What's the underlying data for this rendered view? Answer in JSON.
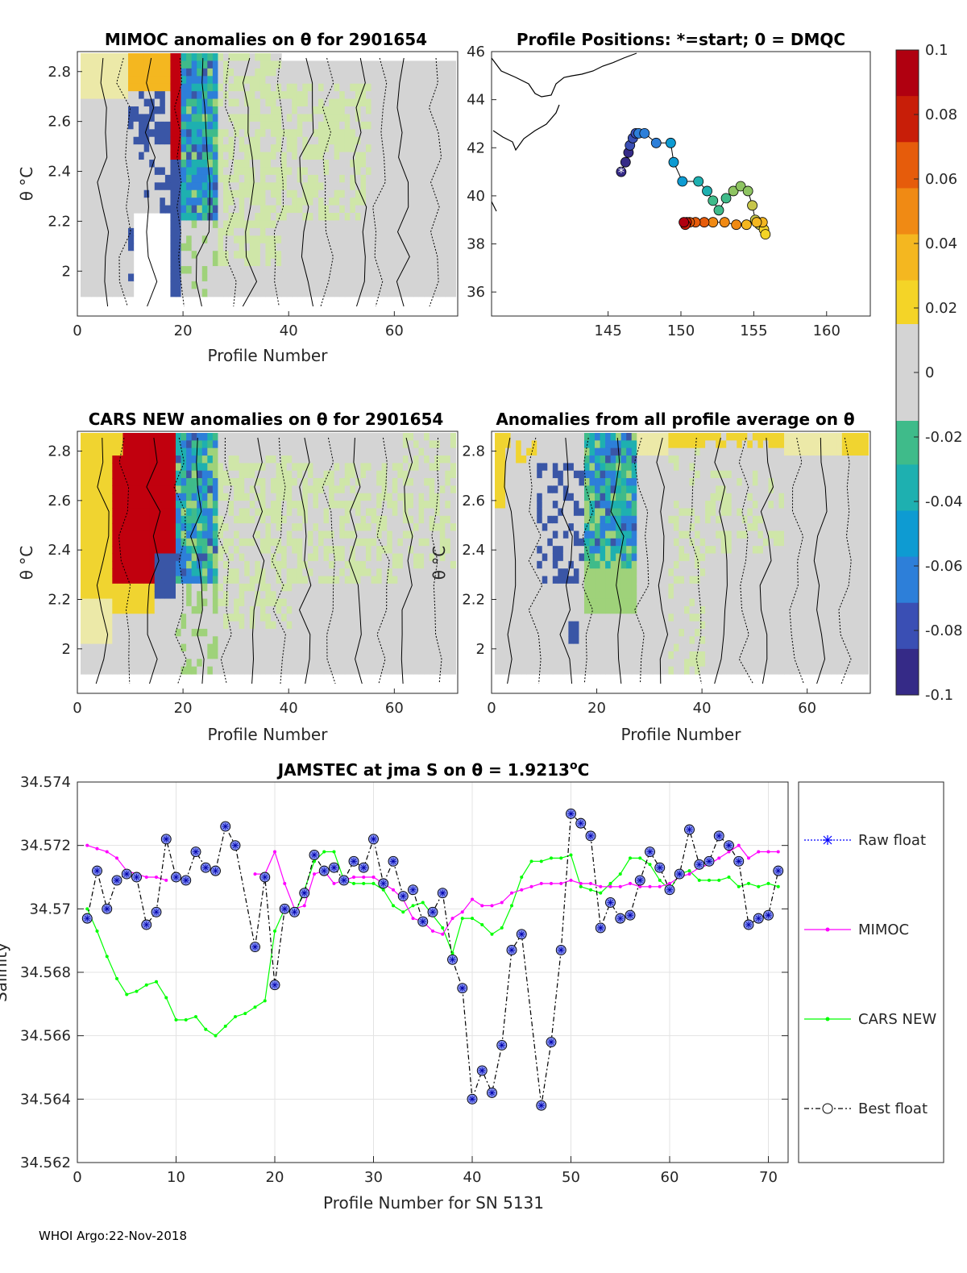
{
  "footer": "WHOI Argo:22-Nov-2018",
  "colormap": [
    "#352a87",
    "#3a4fb4",
    "#2d7fd9",
    "#0e9bd2",
    "#1eb0b0",
    "#3fbb8a",
    "#8ec462",
    "#c7c64b",
    "#f4d427",
    "#f4b720",
    "#f08a14",
    "#e65c0b",
    "#c81e08",
    "#b00010"
  ],
  "chart_data": [
    {
      "type": "heatmap",
      "title": "MIMOC anomalies on θ  for 2901654",
      "xlabel": "Profile Number",
      "ylabel": "θ °C",
      "xlim": [
        0,
        72
      ],
      "ylim": [
        1.82,
        2.88
      ],
      "xticks": [
        0,
        20,
        40,
        60
      ],
      "yticks": [
        2,
        2.2,
        2.4,
        2.6,
        2.8
      ],
      "xtick_labels": [
        "0",
        "20",
        "40",
        "60"
      ],
      "ytick_labels": [
        "2",
        "2.2",
        "2.4",
        "2.6",
        "2.8"
      ]
    },
    {
      "type": "scatter",
      "title": "Profile Positions: *=start; 0 = DMQC",
      "xlim": [
        137,
        163
      ],
      "ylim": [
        35,
        46
      ],
      "xticks": [
        145,
        150,
        155,
        160
      ],
      "yticks": [
        36,
        38,
        40,
        42,
        44,
        46
      ],
      "xtick_labels": [
        "145",
        "150",
        "155",
        "160"
      ],
      "ytick_labels": [
        "36",
        "38",
        "40",
        "42",
        "44",
        "46"
      ],
      "lon": [
        145.9,
        146.2,
        146.4,
        146.5,
        146.7,
        146.9,
        147.1,
        147.5,
        148.3,
        149.3,
        149.5,
        150.1,
        151.2,
        151.8,
        152.2,
        152.6,
        153.1,
        153.6,
        154.1,
        154.6,
        154.9,
        155.1,
        155.4,
        155.7,
        155.8,
        155.6,
        155.2,
        154.5,
        153.8,
        153.0,
        152.2,
        151.6,
        151.0,
        150.6,
        150.4,
        150.3,
        150.2
      ],
      "lat": [
        41.0,
        41.4,
        41.8,
        42.1,
        42.4,
        42.6,
        42.6,
        42.6,
        42.2,
        42.2,
        41.4,
        40.6,
        40.6,
        40.2,
        39.8,
        39.4,
        39.9,
        40.2,
        40.4,
        40.2,
        39.6,
        39.0,
        38.8,
        38.6,
        38.4,
        38.9,
        38.9,
        38.8,
        38.8,
        38.9,
        38.9,
        38.9,
        38.9,
        38.9,
        38.9,
        38.8,
        38.9
      ]
    },
    {
      "type": "colorbar",
      "ticks": [
        0.1,
        0.08,
        0.06,
        0.04,
        0.02,
        0,
        -0.02,
        -0.04,
        -0.06,
        -0.08,
        -0.1
      ],
      "tick_labels": [
        "0.1",
        "0.08",
        "0.06",
        "0.04",
        "0.02",
        "0",
        "-0.02",
        "-0.04",
        "-0.06",
        "-0.08",
        "-0.1"
      ],
      "range": [
        -0.1,
        0.1
      ]
    },
    {
      "type": "heatmap",
      "title": "CARS NEW anomalies on θ for 2901654",
      "xlabel": "Profile Number",
      "ylabel": "θ °C",
      "xlim": [
        0,
        72
      ],
      "ylim": [
        1.82,
        2.88
      ],
      "xticks": [
        0,
        20,
        40,
        60
      ],
      "yticks": [
        2,
        2.2,
        2.4,
        2.6,
        2.8
      ],
      "xtick_labels": [
        "0",
        "20",
        "40",
        "60"
      ],
      "ytick_labels": [
        "2",
        "2.2",
        "2.4",
        "2.6",
        "2.8"
      ]
    },
    {
      "type": "heatmap",
      "title": "Anomalies from all profile average on θ",
      "xlabel": "Profile Number",
      "ylabel": "θ °C",
      "xlim": [
        0,
        72
      ],
      "ylim": [
        1.82,
        2.88
      ],
      "xticks": [
        0,
        20,
        40,
        60
      ],
      "yticks": [
        2,
        2.2,
        2.4,
        2.6,
        2.8
      ],
      "xtick_labels": [
        "0",
        "20",
        "40",
        "60"
      ],
      "ytick_labels": [
        "2",
        "2.2",
        "2.4",
        "2.6",
        "2.8"
      ]
    },
    {
      "type": "line",
      "title_prefix": "JAMSTEC at jma S on θ = 1.9213",
      "title_sup": "o",
      "title_suffix": "C",
      "xlabel": "Profile Number for SN 5131",
      "ylabel": "Salinity",
      "xlim": [
        0,
        72
      ],
      "ylim": [
        34.562,
        34.574
      ],
      "xticks": [
        0,
        10,
        20,
        30,
        40,
        50,
        60,
        70
      ],
      "yticks": [
        34.562,
        34.564,
        34.566,
        34.568,
        34.57,
        34.572,
        34.574
      ],
      "xtick_labels": [
        "0",
        "10",
        "20",
        "30",
        "40",
        "50",
        "60",
        "70"
      ],
      "ytick_labels": [
        "34.562",
        "34.564",
        "34.566",
        "34.568",
        "34.57",
        "34.572",
        "34.574"
      ],
      "legend": [
        "Raw float",
        "MIMOC",
        "CARS NEW",
        "Best float"
      ],
      "series": [
        {
          "name": "Raw float",
          "color": "#0000ff",
          "x": [
            1,
            2,
            3,
            4,
            5,
            6,
            7,
            8,
            9,
            10,
            11,
            12,
            13,
            14,
            15,
            16,
            18,
            19,
            20,
            21,
            22,
            23,
            24,
            25,
            26,
            27,
            28,
            29,
            30,
            31,
            32,
            33,
            34,
            35,
            36,
            37,
            38,
            39,
            40,
            41,
            42,
            43,
            44,
            45,
            47,
            48,
            49,
            50,
            51,
            52,
            53,
            54,
            55,
            56,
            57,
            58,
            59,
            60,
            61,
            62,
            63,
            64,
            65,
            66,
            67,
            68,
            69,
            70,
            71
          ],
          "y": [
            34.5697,
            34.5712,
            34.57,
            34.5709,
            34.5711,
            34.571,
            34.5695,
            34.5699,
            34.5722,
            34.571,
            34.5709,
            34.5718,
            34.5713,
            34.5712,
            34.5726,
            34.572,
            34.5688,
            34.571,
            34.5676,
            34.57,
            34.5699,
            34.5705,
            34.5717,
            34.5712,
            34.5713,
            34.5709,
            34.5715,
            34.5713,
            34.5722,
            34.5708,
            34.5715,
            34.5704,
            34.5706,
            34.5696,
            34.5699,
            34.5705,
            34.5684,
            34.5675,
            34.564,
            34.5649,
            34.5642,
            34.5657,
            34.5687,
            34.5692,
            34.5638,
            34.5658,
            34.5687,
            34.573,
            34.5727,
            34.5723,
            34.5694,
            34.5702,
            34.5697,
            34.5698,
            34.5709,
            34.5718,
            34.5713,
            34.5706,
            34.5711,
            34.5725,
            34.5714,
            34.5715,
            34.5723,
            34.572,
            34.5715,
            34.5695,
            34.5697,
            34.5698,
            34.5712
          ]
        },
        {
          "name": "MIMOC",
          "color": "#ff00ff",
          "x": [
            1,
            2,
            3,
            4,
            5,
            6,
            7,
            8,
            9,
            18,
            19,
            20,
            21,
            22,
            23,
            24,
            25,
            26,
            27,
            28,
            29,
            30,
            31,
            32,
            33,
            34,
            35,
            36,
            37,
            38,
            39,
            40,
            41,
            42,
            43,
            44,
            45,
            46,
            47,
            48,
            49,
            50,
            51,
            52,
            53,
            54,
            55,
            56,
            57,
            58,
            59,
            60,
            61,
            62,
            63,
            64,
            65,
            66,
            67,
            68,
            69,
            70,
            71
          ],
          "y": [
            34.572,
            34.5719,
            34.5718,
            34.5716,
            34.5712,
            34.5711,
            34.571,
            34.571,
            34.5709,
            34.5711,
            34.5711,
            34.5718,
            34.5708,
            34.57,
            34.5701,
            34.5711,
            34.5712,
            34.5708,
            34.5709,
            34.571,
            34.571,
            34.571,
            34.5708,
            34.5706,
            34.5703,
            34.5697,
            34.5696,
            34.5693,
            34.5692,
            34.5697,
            34.5699,
            34.5703,
            34.5701,
            34.5701,
            34.5702,
            34.5705,
            34.5706,
            34.5707,
            34.5708,
            34.5708,
            34.5708,
            34.5709,
            34.5708,
            34.5708,
            34.5707,
            34.5707,
            34.5707,
            34.5708,
            34.5707,
            34.5707,
            34.5707,
            34.5708,
            34.571,
            34.5711,
            34.5713,
            34.5714,
            34.5716,
            34.5718,
            34.572,
            34.5716,
            34.5718,
            34.5718,
            34.5718
          ]
        },
        {
          "name": "CARS NEW",
          "color": "#00ff00",
          "x": [
            1,
            2,
            3,
            4,
            5,
            6,
            7,
            8,
            9,
            10,
            11,
            12,
            13,
            14,
            15,
            16,
            17,
            18,
            19,
            20,
            21,
            22,
            23,
            24,
            25,
            26,
            27,
            28,
            29,
            30,
            31,
            32,
            33,
            34,
            35,
            36,
            37,
            38,
            39,
            40,
            41,
            42,
            43,
            44,
            45,
            46,
            47,
            48,
            49,
            50,
            51,
            52,
            53,
            54,
            55,
            56,
            57,
            58,
            59,
            60,
            61,
            62,
            63,
            64,
            65,
            66,
            67,
            68,
            69,
            70,
            71
          ],
          "y": [
            34.57,
            34.5693,
            34.5685,
            34.5678,
            34.5673,
            34.5674,
            34.5676,
            34.5677,
            34.5672,
            34.5665,
            34.5665,
            34.5666,
            34.5662,
            34.566,
            34.5663,
            34.5666,
            34.5667,
            34.5669,
            34.5671,
            34.5693,
            34.57,
            34.5698,
            34.5706,
            34.5715,
            34.5718,
            34.5718,
            34.5709,
            34.5708,
            34.5708,
            34.5708,
            34.5706,
            34.5701,
            34.5699,
            34.5701,
            34.5702,
            34.5698,
            34.5694,
            34.5686,
            34.5697,
            34.5697,
            34.5695,
            34.5692,
            34.5694,
            34.5701,
            34.571,
            34.5715,
            34.5715,
            34.5716,
            34.5716,
            34.5717,
            34.5707,
            34.5706,
            34.5705,
            34.5708,
            34.5711,
            34.5716,
            34.5716,
            34.5714,
            34.5709,
            34.5706,
            34.5711,
            34.5712,
            34.5709,
            34.5709,
            34.5709,
            34.571,
            34.5707,
            34.5708,
            34.5707,
            34.5708,
            34.5707
          ]
        },
        {
          "name": "Best float",
          "color": "#000000",
          "x": [
            1,
            2,
            3,
            4,
            5,
            6,
            7,
            8,
            9,
            10,
            11,
            12,
            13,
            14,
            15,
            16,
            18,
            19,
            20,
            21,
            22,
            23,
            24,
            25,
            26,
            27,
            28,
            29,
            30,
            31,
            32,
            33,
            34,
            35,
            36,
            37,
            38,
            39,
            40,
            41,
            42,
            43,
            44,
            45,
            47,
            48,
            49,
            50,
            51,
            52,
            53,
            54,
            55,
            56,
            57,
            58,
            59,
            60,
            61,
            62,
            63,
            64,
            65,
            66,
            67,
            68,
            69,
            70,
            71
          ],
          "y": [
            34.5697,
            34.5712,
            34.57,
            34.5709,
            34.5711,
            34.571,
            34.5695,
            34.5699,
            34.5722,
            34.571,
            34.5709,
            34.5718,
            34.5713,
            34.5712,
            34.5726,
            34.572,
            34.5688,
            34.571,
            34.5676,
            34.57,
            34.5699,
            34.5705,
            34.5717,
            34.5712,
            34.5713,
            34.5709,
            34.5715,
            34.5713,
            34.5722,
            34.5708,
            34.5715,
            34.5704,
            34.5706,
            34.5696,
            34.5699,
            34.5705,
            34.5684,
            34.5675,
            34.564,
            34.5649,
            34.5642,
            34.5657,
            34.5687,
            34.5692,
            34.5638,
            34.5658,
            34.5687,
            34.573,
            34.5727,
            34.5723,
            34.5694,
            34.5702,
            34.5697,
            34.5698,
            34.5709,
            34.5718,
            34.5713,
            34.5706,
            34.5711,
            34.5725,
            34.5714,
            34.5715,
            34.5723,
            34.572,
            34.5715,
            34.5695,
            34.5697,
            34.5698,
            34.5712
          ]
        }
      ]
    }
  ]
}
